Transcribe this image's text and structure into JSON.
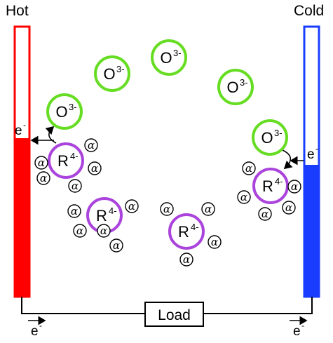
{
  "labels": {
    "hot": "Hot",
    "cold": "Cold",
    "load": "Load",
    "electron": "e",
    "electron_charge": "-"
  },
  "species": {
    "oxidized": {
      "symbol": "O",
      "charge": "3-"
    },
    "reduced": {
      "symbol": "R",
      "charge": "4-"
    },
    "ligand": "α"
  },
  "colors": {
    "hot_electrode": "#ff0000",
    "cold_electrode": "#1a3cff",
    "oxidized_ring": "#66dd22",
    "reduced_ring": "#aa44dd"
  }
}
